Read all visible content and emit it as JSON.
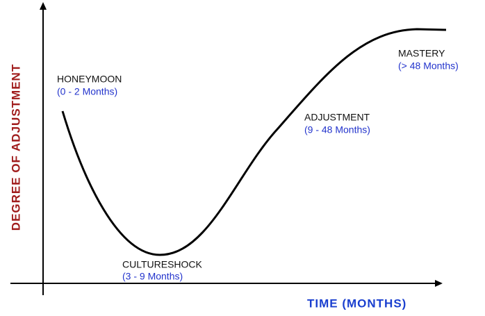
{
  "axes": {
    "y_label": "DEGREE OF ADJUSTMENT",
    "x_label": "TIME (MONTHS)"
  },
  "stages": [
    {
      "name": "HONEYMOON",
      "period": "(0 - 2 Months)"
    },
    {
      "name": "CULTURESHOCK",
      "period": "(3 - 9 Months)"
    },
    {
      "name": "ADJUSTMENT",
      "period": "(9 - 48 Months)"
    },
    {
      "name": "MASTERY",
      "period": "(> 48 Months)"
    }
  ]
}
